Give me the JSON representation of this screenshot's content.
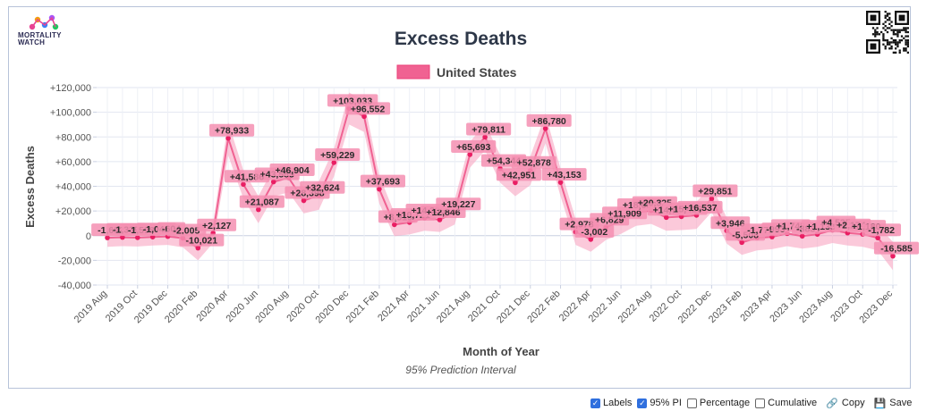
{
  "brand": {
    "logo_text": "MORTALITY WATCH"
  },
  "chart_data": {
    "type": "line",
    "title": "Excess Deaths",
    "xlabel": "Month of Year",
    "ylabel": "Excess Deaths",
    "footnote": "95% Prediction Interval",
    "ylim": [
      -40000,
      120000
    ],
    "yticks": [
      -40000,
      -20000,
      0,
      20000,
      40000,
      60000,
      80000,
      100000,
      120000
    ],
    "ytick_labels": [
      "-40,000",
      "-20,000",
      "0",
      "+20,000",
      "+40,000",
      "+60,000",
      "+80,000",
      "+100,000",
      "+120,000"
    ],
    "x": [
      "2019 Aug",
      "2019 Sep",
      "2019 Oct",
      "2019 Nov",
      "2019 Dec",
      "2020 Jan",
      "2020 Feb",
      "2020 Mar",
      "2020 Apr",
      "2020 May",
      "2020 Jun",
      "2020 Jul",
      "2020 Aug",
      "2020 Sep",
      "2020 Oct",
      "2020 Nov",
      "2020 Dec",
      "2021 Jan",
      "2021 Feb",
      "2021 Mar",
      "2021 Apr",
      "2021 May",
      "2021 Jun",
      "2021 Jul",
      "2021 Aug",
      "2021 Sep",
      "2021 Oct",
      "2021 Nov",
      "2021 Dec",
      "2022 Jan",
      "2022 Feb",
      "2022 Mar",
      "2022 Apr",
      "2022 May",
      "2022 Jun",
      "2022 Jul",
      "2022 Aug",
      "2022 Sep",
      "2022 Oct",
      "2022 Nov",
      "2022 Dec",
      "2023 Jan",
      "2023 Feb",
      "2023 Mar",
      "2023 Apr",
      "2023 May",
      "2023 Jun",
      "2023 Jul",
      "2023 Aug",
      "2023 Sep",
      "2023 Oct",
      "2023 Nov",
      "2023 Dec"
    ],
    "xtick_labels": [
      "2019 Aug",
      "2019 Oct",
      "2019 Dec",
      "2020 Feb",
      "2020 Apr",
      "2020 Jun",
      "2020 Aug",
      "2020 Oct",
      "2020 Dec",
      "2021 Feb",
      "2021 Apr",
      "2021 Jun",
      "2021 Aug",
      "2021 Oct",
      "2021 Dec",
      "2022 Feb",
      "2022 Apr",
      "2022 Jun",
      "2022 Aug",
      "2022 Oct",
      "2022 Dec",
      "2023 Feb",
      "2023 Apr",
      "2023 Jun",
      "2023 Aug",
      "2023 Oct",
      "2023 Dec"
    ],
    "series": [
      {
        "name": "United States",
        "color": "#f06292",
        "values": [
          -1692,
          -1339,
          -1598,
          -1042,
          -604,
          -2005,
          -10021,
          2127,
          78933,
          41586,
          21087,
          43585,
          46904,
          28398,
          32624,
          59229,
          103033,
          96552,
          37693,
          8915,
          10721,
          14336,
          12846,
          19227,
          65693,
          79811,
          54344,
          42951,
          52878,
          86780,
          43153,
          2978,
          -3002,
          6829,
          11909,
          18636,
          20325,
          14746,
          15426,
          16537,
          29851,
          3946,
          -5508,
          -1779,
          -993,
          1742,
          -383,
          1135,
          4535,
          2174,
          1180,
          -1782,
          -16585
        ],
        "lower": [
          -9000,
          -8500,
          -8800,
          -8000,
          -7500,
          -9500,
          -20000,
          -6000,
          65000,
          30000,
          10000,
          32000,
          35000,
          18000,
          21000,
          48000,
          90000,
          84000,
          26000,
          -500,
          1000,
          4000,
          3000,
          9000,
          55000,
          69000,
          43000,
          32000,
          41000,
          75000,
          32000,
          -7500,
          -13000,
          -3500,
          1500,
          8000,
          9500,
          4000,
          4500,
          5500,
          19000,
          -6500,
          -15500,
          -12000,
          -11000,
          -8500,
          -10500,
          -9000,
          -6000,
          -8000,
          -9000,
          -12000,
          -28000
        ],
        "upper": [
          5500,
          6000,
          5700,
          6200,
          6700,
          5200,
          -1000,
          10500,
          92000,
          53000,
          32000,
          55000,
          58500,
          39000,
          44000,
          70500,
          116000,
          109000,
          49000,
          18500,
          20500,
          24500,
          22500,
          29500,
          76000,
          90500,
          65500,
          54000,
          64500,
          98500,
          54500,
          13500,
          7000,
          17000,
          22000,
          29000,
          31000,
          25500,
          26000,
          27500,
          40500,
          14500,
          4500,
          8500,
          9000,
          12000,
          10000,
          11500,
          15000,
          12500,
          11500,
          8500,
          -5000
        ]
      }
    ],
    "data_labels": [
      "-1,692",
      "-1,339",
      "-1,598",
      "-1,042",
      "-604",
      "-2,005",
      "-10,021",
      "+2,127",
      "+78,933",
      "+41,586",
      "+21,087",
      "+43,585",
      "+46,904",
      "+28,398",
      "+32,624",
      "+59,229",
      "+103,033",
      "+96,552",
      "+37,693",
      "+8,915",
      "+10,721",
      "+14,336",
      "+12,846",
      "+19,227",
      "+65,693",
      "+79,811",
      "+54,344",
      "+42,951",
      "+52,878",
      "+86,780",
      "+43,153",
      "+2,978",
      "-3,002",
      "+6,829",
      "+11,909",
      "+18,636",
      "+20,325",
      "+14,746",
      "+15,426",
      "+16,537",
      "+29,851",
      "+3,946",
      "-5,508",
      "-1,779",
      "-993",
      "+1,742",
      "-383",
      "+1,135",
      "+4,535",
      "+2,174",
      "+1,180",
      "-1,782",
      "-16,585"
    ],
    "legend_position": "top-center",
    "grid": true
  },
  "controls": {
    "labels": "Labels",
    "labels_checked": true,
    "pi": "95% PI",
    "pi_checked": true,
    "percentage": "Percentage",
    "percentage_checked": false,
    "cumulative": "Cumulative",
    "cumulative_checked": false,
    "copy": "Copy",
    "save": "Save",
    "check_glyph": "✓"
  }
}
